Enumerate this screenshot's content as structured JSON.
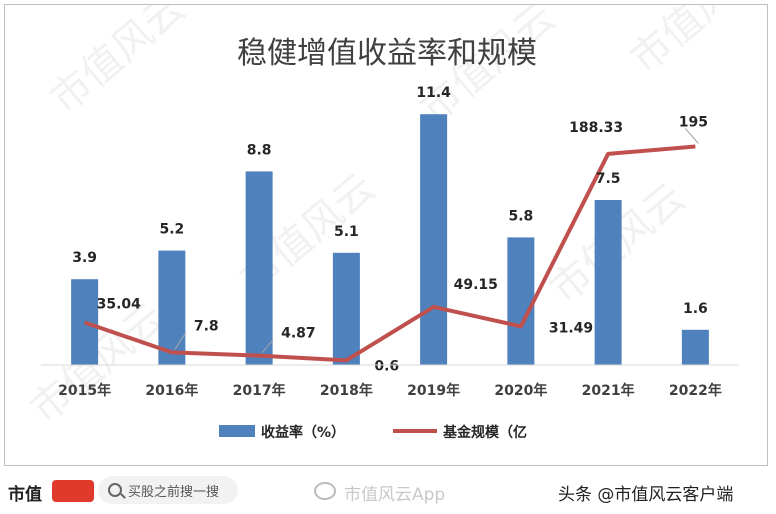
{
  "watermark": "市值风云",
  "chart_data": {
    "type": "bar",
    "title": "稳健增值收益率和规模",
    "categories": [
      "2015年",
      "2016年",
      "2017年",
      "2018年",
      "2019年",
      "2020年",
      "2021年",
      "2022年"
    ],
    "series": [
      {
        "name": "收益率（%）",
        "type": "bar",
        "color": "#4f81bd",
        "values": [
          3.9,
          5.2,
          8.8,
          5.1,
          11.4,
          5.8,
          7.5,
          1.6
        ],
        "labels": [
          "3.9",
          "5.2",
          "8.8",
          "5.1",
          "11.4",
          "5.8",
          "7.5",
          "1.6"
        ]
      },
      {
        "name": "基金规模（亿",
        "type": "line",
        "color": "#c0504d",
        "values": [
          35.04,
          7.8,
          4.87,
          0.6,
          49.15,
          31.49,
          188.33,
          195
        ],
        "labels": [
          "35.04",
          "7.8",
          "4.87",
          "0.6",
          "49.15",
          "31.49",
          "188.33",
          "195"
        ]
      }
    ],
    "legend_position": "bottom",
    "grid": false
  },
  "footer": {
    "brand": "市值",
    "search_placeholder": "买股之前搜一搜",
    "weibo": "市值风云App",
    "author": "头条 @市值风云客户端"
  }
}
